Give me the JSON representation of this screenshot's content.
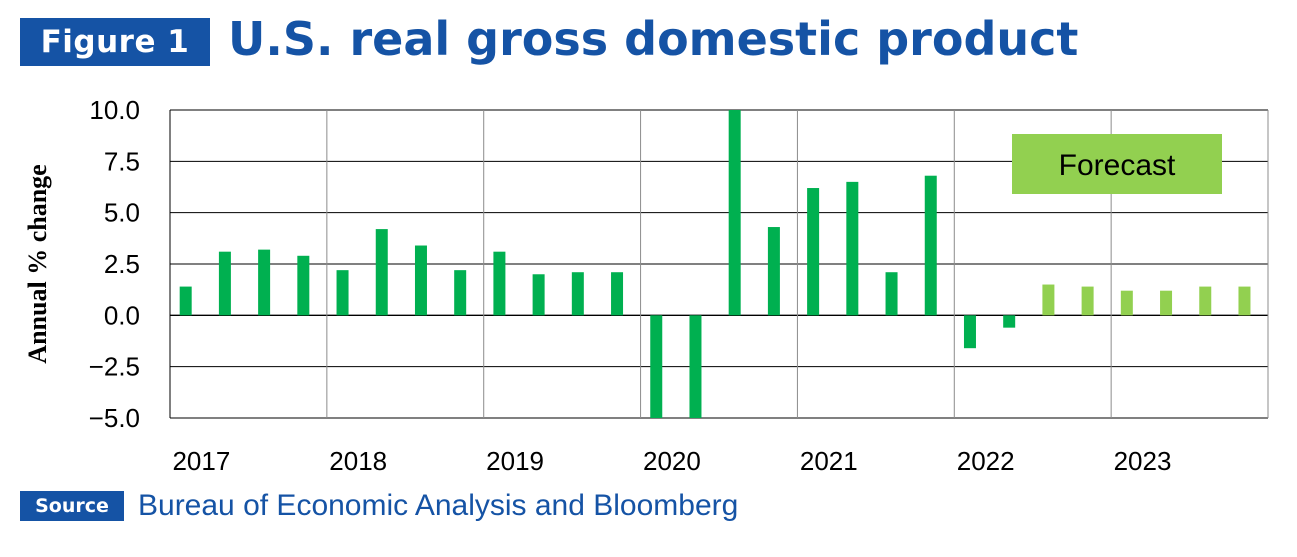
{
  "figure_label": "Figure 1",
  "title": "U.S. real gross domestic product",
  "source": {
    "label": "Source",
    "text": "Bureau of Economic Analysis and Bloomberg"
  },
  "colors": {
    "brand_blue": "#1553a5",
    "actual": "#00b050",
    "forecast": "#92d050"
  },
  "chart_data": {
    "type": "bar",
    "title": "",
    "xlabel": "",
    "ylabel": "Annual % change",
    "ylim": [
      -5.0,
      10.0
    ],
    "yticks": [
      10.0,
      7.5,
      5.0,
      2.5,
      0.0,
      -2.5,
      -5.0
    ],
    "ytick_labels": [
      "10.0",
      "7.5",
      "5.0",
      "2.5",
      "0.0",
      "−2.5",
      "−5.0"
    ],
    "year_labels": [
      "2017",
      "2018",
      "2019",
      "2020",
      "2021",
      "2022",
      "2023"
    ],
    "grid": true,
    "categories": [
      "2017 Q1",
      "2017 Q2",
      "2017 Q3",
      "2017 Q4",
      "2018 Q1",
      "2018 Q2",
      "2018 Q3",
      "2018 Q4",
      "2019 Q1",
      "2019 Q2",
      "2019 Q3",
      "2019 Q4",
      "2020 Q1",
      "2020 Q2",
      "2020 Q3",
      "2020 Q4",
      "2021 Q1",
      "2021 Q2",
      "2021 Q3",
      "2021 Q4",
      "2022 Q1",
      "2022 Q2",
      "2022 Q3",
      "2022 Q4",
      "2023 Q1",
      "2023 Q2",
      "2023 Q3",
      "2023 Q4"
    ],
    "values": [
      1.4,
      3.1,
      3.2,
      2.9,
      2.2,
      4.2,
      3.4,
      2.2,
      3.1,
      2.0,
      2.1,
      2.1,
      -5.0,
      -5.0,
      10.0,
      4.3,
      6.2,
      6.5,
      2.1,
      6.8,
      -1.6,
      -0.6,
      1.5,
      1.4,
      1.2,
      1.2,
      1.4,
      1.4
    ],
    "forecast": [
      false,
      false,
      false,
      false,
      false,
      false,
      false,
      false,
      false,
      false,
      false,
      false,
      false,
      false,
      false,
      false,
      false,
      false,
      false,
      false,
      false,
      false,
      true,
      true,
      true,
      true,
      true,
      true
    ],
    "annotation": {
      "text": "Forecast"
    }
  }
}
